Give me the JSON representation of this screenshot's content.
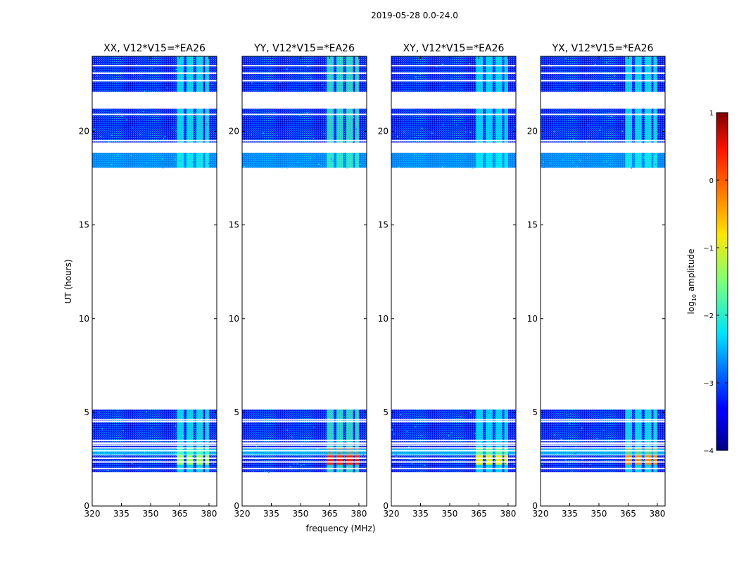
{
  "figure": {
    "suptitle": "2019-05-28 0.0-24.0",
    "xlabel": "frequency (MHz)",
    "ylabel": "UT (hours)",
    "colorbar_label_prefix": "log",
    "colorbar_label_sub": "10",
    "colorbar_label_suffix": " amplitude",
    "colorbar_ticks": [
      "1",
      "0",
      "−1",
      "−2",
      "−3",
      "−4"
    ]
  },
  "chart_data": {
    "type": "heatmap",
    "colormap": "jet",
    "xlim": [
      320,
      384
    ],
    "ylim": [
      0,
      24
    ],
    "xticks": [
      320,
      335,
      350,
      365,
      380
    ],
    "yticks": [
      0,
      5,
      10,
      15,
      20
    ],
    "clim": [
      -4,
      1
    ],
    "data_time_bands_hours": [
      [
        1.8,
        2.7
      ],
      [
        2.75,
        3.3
      ],
      [
        3.4,
        5.15
      ],
      [
        18.05,
        18.85
      ],
      [
        19.4,
        21.2
      ],
      [
        22.1,
        24.0
      ]
    ],
    "gap_lines_hours": [
      2.0,
      2.35,
      2.55,
      2.95,
      3.1,
      3.25,
      3.5,
      4.5,
      4.6,
      18.9,
      19.5,
      20.9,
      22.7,
      23.1,
      23.5
    ],
    "rfi_frequency_ranges_mhz": [
      [
        363.5,
        367
      ],
      [
        368.5,
        372
      ],
      [
        373.5,
        377
      ],
      [
        378,
        380
      ]
    ],
    "panels": [
      {
        "title": "XX, V12*V15=*EA26",
        "baseline_level": -3.1,
        "rfi_level": -2.0,
        "strong_rfi_level": -1.3
      },
      {
        "title": "YY, V12*V15=*EA26",
        "baseline_level": -3.1,
        "rfi_level": -1.8,
        "strong_rfi_level": 0.3
      },
      {
        "title": "XY, V12*V15=*EA26",
        "baseline_level": -3.2,
        "rfi_level": -2.1,
        "strong_rfi_level": -0.8
      },
      {
        "title": "YX, V12*V15=*EA26",
        "baseline_level": -3.2,
        "rfi_level": -2.0,
        "strong_rfi_level": -0.3
      }
    ]
  }
}
